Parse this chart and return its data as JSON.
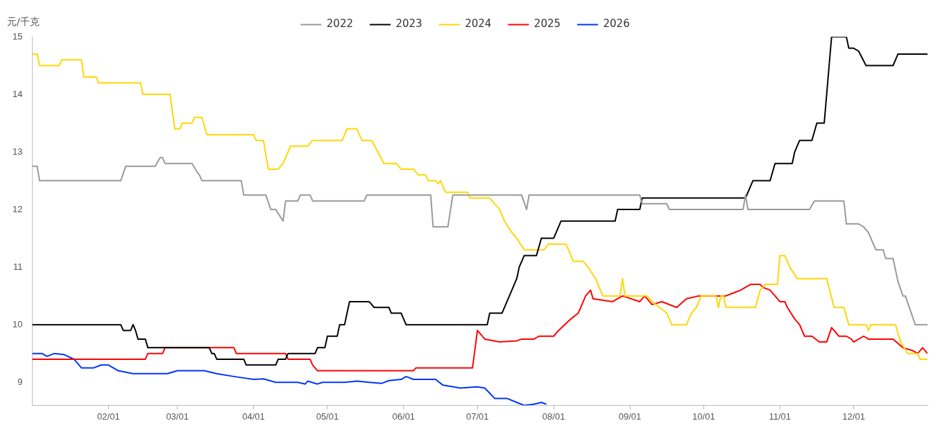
{
  "chart_data": {
    "type": "line",
    "ylabel": "元/千克",
    "legend": "top",
    "grid": false,
    "marker": "none",
    "line_style": "solid",
    "xlim": [
      "--01-01",
      "--12-31"
    ],
    "xticks": [
      {
        "value": "--02-01",
        "label": "02/01"
      },
      {
        "value": "--03-01",
        "label": "03/01"
      },
      {
        "value": "--04-01",
        "label": "04/01"
      },
      {
        "value": "--05-01",
        "label": "05/01"
      },
      {
        "value": "--06-01",
        "label": "06/01"
      },
      {
        "value": "--07-01",
        "label": "07/01"
      },
      {
        "value": "--08-01",
        "label": "08/01"
      },
      {
        "value": "--09-01",
        "label": "09/01"
      },
      {
        "value": "--10-01",
        "label": "10/01"
      },
      {
        "value": "--11-01",
        "label": "11/01"
      },
      {
        "value": "--12-01",
        "label": "12/01"
      }
    ],
    "ylim": [
      8.6,
      15
    ],
    "yticks": [
      9,
      10,
      11,
      12,
      13,
      14,
      15
    ],
    "series": [
      {
        "name": "2022",
        "color": "#999999",
        "x": [
          "--01-01",
          "--01-03",
          "--01-04",
          "--02-06",
          "--02-08",
          "--02-20",
          "--02-22",
          "--02-23",
          "--02-24",
          "--03-07",
          "--03-09",
          "--03-10",
          "--03-11",
          "--03-27",
          "--03-28",
          "--04-06",
          "--04-08",
          "--04-10",
          "--04-13",
          "--04-14",
          "--04-19",
          "--04-20",
          "--04-24",
          "--04-25",
          "--05-16",
          "--05-17",
          "--06-12",
          "--06-13",
          "--06-19",
          "--06-21",
          "--07-19",
          "--07-21",
          "--07-22",
          "--09-05",
          "--09-06",
          "--09-16",
          "--09-17",
          "--10-17",
          "--10-18",
          "--10-19",
          "--11-13",
          "--11-15",
          "--11-27",
          "--11-28",
          "--12-03",
          "--12-05",
          "--12-07",
          "--12-08",
          "--12-09",
          "--12-10",
          "--12-13",
          "--12-14",
          "--12-17",
          "--12-19",
          "--12-21",
          "--12-22",
          "--12-24",
          "--12-26",
          "--12-31"
        ],
        "values": [
          12.75,
          12.75,
          12.5,
          12.5,
          12.75,
          12.75,
          12.9,
          12.9,
          12.8,
          12.8,
          12.65,
          12.6,
          12.5,
          12.5,
          12.25,
          12.25,
          12,
          12,
          11.8,
          12.15,
          12.15,
          12.25,
          12.25,
          12.15,
          12.15,
          12.25,
          12.25,
          11.7,
          11.7,
          12.25,
          12.25,
          12,
          12.25,
          12.25,
          12.1,
          12.1,
          12,
          12,
          12.25,
          12,
          12,
          12.15,
          12.15,
          11.75,
          11.75,
          11.7,
          11.6,
          11.5,
          11.4,
          11.3,
          11.3,
          11.15,
          11.15,
          10.75,
          10.5,
          10.5,
          10.25,
          10,
          10
        ]
      },
      {
        "name": "2023",
        "color": "#000000",
        "x": [
          "--01-01",
          "--02-06",
          "--02-07",
          "--02-10",
          "--02-11",
          "--02-12",
          "--02-13",
          "--02-16",
          "--02-17",
          "--03-14",
          "--03-15",
          "--03-16",
          "--03-17",
          "--03-28",
          "--03-29",
          "--04-10",
          "--04-11",
          "--04-14",
          "--04-15",
          "--04-26",
          "--04-27",
          "--04-30",
          "--05-01",
          "--05-05",
          "--05-06",
          "--05-08",
          "--05-09",
          "--05-10",
          "--05-18",
          "--05-20",
          "--05-26",
          "--05-27",
          "--05-31",
          "--06-02",
          "--07-05",
          "--07-06",
          "--07-11",
          "--07-13",
          "--07-15",
          "--07-17",
          "--07-18",
          "--07-20",
          "--07-25",
          "--07-27",
          "--08-01",
          "--08-02",
          "--08-04",
          "--08-26",
          "--08-27",
          "--09-05",
          "--09-06",
          "--10-18",
          "--10-21",
          "--10-28",
          "--10-30",
          "--11-06",
          "--11-07",
          "--11-09",
          "--11-14",
          "--11-16",
          "--11-19",
          "--11-21",
          "--11-22",
          "--11-28",
          "--11-29",
          "--12-01",
          "--12-03",
          "--12-06",
          "--12-17",
          "--12-19",
          "--12-31"
        ],
        "values": [
          10,
          10,
          9.9,
          9.9,
          10,
          9.9,
          9.75,
          9.75,
          9.6,
          9.6,
          9.5,
          9.5,
          9.4,
          9.4,
          9.3,
          9.3,
          9.4,
          9.4,
          9.5,
          9.5,
          9.6,
          9.6,
          9.8,
          9.8,
          10,
          10,
          10.2,
          10.4,
          10.4,
          10.3,
          10.3,
          10.2,
          10.2,
          10,
          10,
          10.2,
          10.2,
          10.4,
          10.6,
          10.8,
          11,
          11.2,
          11.2,
          11.5,
          11.5,
          11.6,
          11.8,
          11.8,
          12,
          12,
          12.2,
          12.2,
          12.5,
          12.5,
          12.8,
          12.8,
          13,
          13.2,
          13.2,
          13.5,
          13.5,
          14.5,
          15,
          15,
          14.8,
          14.8,
          14.75,
          14.5,
          14.5,
          14.7,
          14.7
        ]
      },
      {
        "name": "2024",
        "color": "#ffd700",
        "x": [
          "--01-01",
          "--01-03",
          "--01-04",
          "--01-12",
          "--01-13",
          "--01-21",
          "--01-22",
          "--01-27",
          "--01-28",
          "--02-14",
          "--02-15",
          "--02-26",
          "--02-28",
          "--03-02",
          "--03-03",
          "--03-07",
          "--03-08",
          "--03-11",
          "--03-13",
          "--04-01",
          "--04-02",
          "--04-05",
          "--04-07",
          "--04-11",
          "--04-13",
          "--04-15",
          "--04-16",
          "--04-23",
          "--04-25",
          "--05-07",
          "--05-09",
          "--05-13",
          "--05-15",
          "--05-19",
          "--05-24",
          "--05-29",
          "--05-31",
          "--06-05",
          "--06-07",
          "--06-10",
          "--06-11",
          "--06-14",
          "--06-15",
          "--06-16",
          "--06-18",
          "--06-27",
          "--06-28",
          "--07-06",
          "--07-08",
          "--07-10",
          "--07-12",
          "--07-15",
          "--07-17",
          "--07-20",
          "--07-28",
          "--07-30",
          "--08-06",
          "--08-09",
          "--08-13",
          "--08-15",
          "--08-18",
          "--08-21",
          "--08-28",
          "--08-29",
          "--08-30",
          "--09-08",
          "--09-10",
          "--09-13",
          "--09-16",
          "--09-18",
          "--09-24",
          "--09-26",
          "--09-28",
          "--09-30",
          "--10-06",
          "--10-07",
          "--10-08",
          "--10-09",
          "--10-10",
          "--10-22",
          "--10-24",
          "--10-26",
          "--10-31",
          "--11-01",
          "--11-03",
          "--11-05",
          "--11-08",
          "--11-20",
          "--11-23",
          "--11-27",
          "--11-29",
          "--12-06",
          "--12-07",
          "--12-08",
          "--12-18",
          "--12-20",
          "--12-23",
          "--12-27",
          "--12-28",
          "--12-31"
        ],
        "values": [
          14.7,
          14.7,
          14.5,
          14.5,
          14.6,
          14.6,
          14.3,
          14.3,
          14.2,
          14.2,
          14,
          14,
          13.4,
          13.4,
          13.5,
          13.5,
          13.6,
          13.6,
          13.3,
          13.3,
          13.2,
          13.2,
          12.7,
          12.7,
          12.8,
          13,
          13.1,
          13.1,
          13.2,
          13.2,
          13.4,
          13.4,
          13.2,
          13.2,
          12.8,
          12.8,
          12.7,
          12.7,
          12.6,
          12.6,
          12.5,
          12.5,
          12.45,
          12.5,
          12.3,
          12.3,
          12.2,
          12.2,
          12.1,
          12,
          11.8,
          11.6,
          11.5,
          11.3,
          11.3,
          11.4,
          11.4,
          11.1,
          11.1,
          11,
          10.8,
          10.5,
          10.5,
          10.8,
          10.5,
          10.5,
          10.4,
          10.3,
          10.2,
          10,
          10,
          10.2,
          10.3,
          10.5,
          10.5,
          10.3,
          10.5,
          10.5,
          10.3,
          10.3,
          10.6,
          10.7,
          10.7,
          11.2,
          11.2,
          11,
          10.8,
          10.8,
          10.3,
          10.3,
          10,
          10,
          9.9,
          10,
          10,
          9.7,
          9.5,
          9.5,
          9.4,
          9.4
        ]
      },
      {
        "name": "2025",
        "color": "#ff0000",
        "x": [
          "--01-01",
          "--02-16",
          "--02-17",
          "--02-23",
          "--02-24",
          "--03-24",
          "--03-25",
          "--04-14",
          "--04-15",
          "--04-24",
          "--04-25",
          "--04-27",
          "--06-05",
          "--06-06",
          "--06-29",
          "--07-01",
          "--07-04",
          "--07-10",
          "--07-17",
          "--07-19",
          "--07-24",
          "--07-26",
          "--07-30",
          "--08-01",
          "--08-03",
          "--08-08",
          "--08-11",
          "--08-14",
          "--08-16",
          "--08-17",
          "--08-25",
          "--08-29",
          "--09-05",
          "--09-07",
          "--09-10",
          "--09-14",
          "--09-20",
          "--09-24",
          "--09-29",
          "--10-10",
          "--10-13",
          "--10-16",
          "--10-20",
          "--10-24",
          "--10-25",
          "--10-28",
          "--11-01",
          "--11-03",
          "--11-04",
          "--11-07",
          "--11-09",
          "--11-11",
          "--11-14",
          "--11-17",
          "--11-20",
          "--11-22",
          "--11-25",
          "--11-28",
          "--11-30",
          "--12-01",
          "--12-05",
          "--12-07",
          "--12-17",
          "--12-21",
          "--12-25",
          "--12-27",
          "--12-29",
          "--12-31"
        ],
        "values": [
          9.4,
          9.4,
          9.5,
          9.5,
          9.6,
          9.6,
          9.5,
          9.5,
          9.4,
          9.4,
          9.3,
          9.2,
          9.2,
          9.25,
          9.25,
          9.9,
          9.75,
          9.7,
          9.72,
          9.75,
          9.75,
          9.8,
          9.8,
          9.8,
          9.9,
          10.1,
          10.2,
          10.5,
          10.6,
          10.45,
          10.4,
          10.5,
          10.4,
          10.5,
          10.35,
          10.4,
          10.3,
          10.45,
          10.5,
          10.5,
          10.55,
          10.6,
          10.7,
          10.7,
          10.65,
          10.6,
          10.4,
          10.4,
          10.3,
          10.1,
          10,
          9.8,
          9.8,
          9.7,
          9.7,
          9.95,
          9.8,
          9.8,
          9.75,
          9.7,
          9.8,
          9.75,
          9.75,
          9.6,
          9.55,
          9.5,
          9.6,
          9.5
        ]
      },
      {
        "name": "2026",
        "color": "#0033ff",
        "x": [
          "--01-01",
          "--01-05",
          "--01-07",
          "--01-10",
          "--01-14",
          "--01-18",
          "--01-21",
          "--01-26",
          "--01-29",
          "--02-01",
          "--02-05",
          "--02-11",
          "--02-25",
          "--03-01",
          "--03-12",
          "--03-17",
          "--03-24",
          "--04-01",
          "--04-05",
          "--04-10",
          "--04-19",
          "--04-22",
          "--04-23",
          "--04-27",
          "--04-29",
          "--05-08",
          "--05-13",
          "--05-18",
          "--05-23",
          "--05-26",
          "--05-31",
          "--06-02",
          "--06-05",
          "--06-14",
          "--06-17",
          "--06-24",
          "--07-01",
          "--07-04",
          "--07-08",
          "--07-13",
          "--07-17",
          "--07-20",
          "--07-24",
          "--07-27",
          "--07-29"
        ],
        "values": [
          9.5,
          9.5,
          9.45,
          9.5,
          9.48,
          9.4,
          9.25,
          9.25,
          9.3,
          9.3,
          9.2,
          9.15,
          9.15,
          9.2,
          9.2,
          9.15,
          9.1,
          9.05,
          9.06,
          9,
          9,
          8.97,
          9.02,
          8.97,
          9,
          9,
          9.02,
          9,
          8.98,
          9.03,
          9.05,
          9.1,
          9.05,
          9.05,
          8.95,
          8.9,
          8.92,
          8.9,
          8.72,
          8.72,
          8.65,
          8.6,
          8.62,
          8.65,
          8.62
        ]
      }
    ]
  }
}
